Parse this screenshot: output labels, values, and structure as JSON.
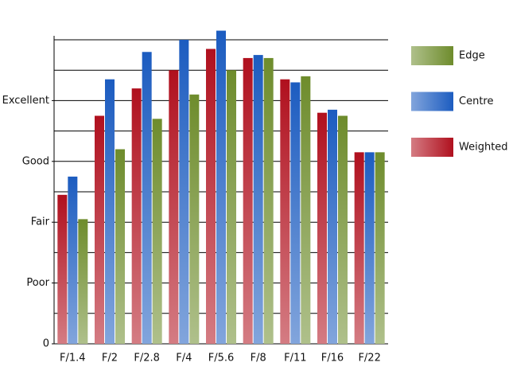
{
  "chart_data": {
    "type": "bar",
    "categories": [
      "F/1.4",
      "F/2",
      "F/2.8",
      "F/4",
      "F/5.6",
      "F/8",
      "F/11",
      "F/16",
      "F/22"
    ],
    "series": [
      {
        "name": "Weighted",
        "color": "#b0101e",
        "values": [
          4.9,
          7.5,
          8.4,
          9.0,
          9.7,
          9.4,
          8.7,
          7.6,
          6.3
        ]
      },
      {
        "name": "Centre",
        "color": "#1c5cc0",
        "values": [
          5.5,
          8.7,
          9.6,
          10.0,
          10.3,
          9.5,
          8.6,
          7.7,
          6.3
        ]
      },
      {
        "name": "Edge",
        "color": "#6e8c2c",
        "values": [
          4.1,
          6.4,
          7.4,
          8.2,
          9.0,
          9.4,
          8.8,
          7.5,
          6.3
        ]
      }
    ],
    "ylim": [
      0,
      10
    ],
    "yticks": [
      0,
      {
        "value": 2,
        "label": "Poor"
      },
      {
        "value": 4,
        "label": "Fair"
      },
      {
        "value": 6,
        "label": "Good"
      },
      {
        "value": 8,
        "label": "Excellent"
      }
    ],
    "ygrid": [
      1,
      2,
      3,
      4,
      5,
      6,
      7,
      8,
      9,
      10
    ],
    "legend": "right"
  }
}
